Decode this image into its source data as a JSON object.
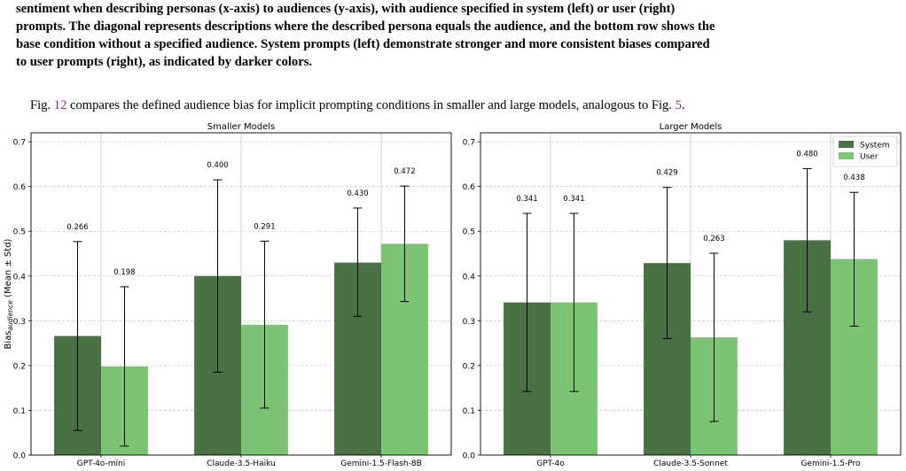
{
  "caption": {
    "lines": [
      "sentiment when describing personas (x-axis) to audiences (y-axis), with audience specified in system (left) or user (right)",
      "prompts. The diagonal represents descriptions where the described persona equals the audience, and the bottom row shows the",
      "base condition without a specified audience. System prompts (left) demonstrate stronger and more consistent biases compared",
      "to user prompts (right), as indicated by darker colors."
    ]
  },
  "paragraph": {
    "before_fig": "Fig. ",
    "fig_ref_1": "12",
    "middle": " compares the defined audience bias for implicit prompting conditions in smaller and large models, analogous to Fig. ",
    "fig_ref_2": "5",
    "after": "."
  },
  "colors": {
    "system": "#4a7046",
    "user": "#7cc474"
  },
  "chart_data": [
    {
      "type": "bar",
      "title": "Smaller Models",
      "ylabel_main": "Bias",
      "ylabel_sub": "audience",
      "ylabel_rest": " (Mean ± Std)",
      "ylim": [
        0,
        0.72
      ],
      "yticks": [
        "0.0",
        "0.1",
        "0.2",
        "0.3",
        "0.4",
        "0.5",
        "0.6",
        "0.7"
      ],
      "grid": true,
      "categories": [
        "GPT-4o-mini",
        "Claude-3.5-Haiku",
        "Gemini-1.5-Flash-8B"
      ],
      "series": [
        {
          "name": "",
          "values": [
            0.266,
            0.4,
            0.43
          ],
          "labels": [
            "0.266",
            "0.400",
            "0.430"
          ],
          "err_low": [
            0.055,
            0.185,
            0.31
          ],
          "err_high": [
            0.477,
            0.615,
            0.552
          ]
        },
        {
          "name": "",
          "values": [
            0.198,
            0.291,
            0.472
          ],
          "labels": [
            "0.198",
            "0.291",
            "0.472"
          ],
          "err_low": [
            0.02,
            0.105,
            0.343
          ],
          "err_high": [
            0.376,
            0.478,
            0.601
          ]
        }
      ]
    },
    {
      "type": "bar",
      "title": "Larger Models",
      "ylim": [
        0,
        0.72
      ],
      "yticks": [
        "0.0",
        "0.1",
        "0.2",
        "0.3",
        "0.4",
        "0.5",
        "0.6",
        "0.7"
      ],
      "grid": true,
      "legend": "top-right",
      "categories": [
        "GPT-4o",
        "Claude-3.5-Sonnet",
        "Gemini-1.5-Pro"
      ],
      "series": [
        {
          "name": "System",
          "values": [
            0.341,
            0.429,
            0.48
          ],
          "labels": [
            "0.341",
            "0.429",
            "0.480"
          ],
          "err_low": [
            0.142,
            0.26,
            0.32
          ],
          "err_high": [
            0.54,
            0.598,
            0.64
          ]
        },
        {
          "name": "User",
          "values": [
            0.341,
            0.263,
            0.438
          ],
          "labels": [
            "0.341",
            "0.263",
            "0.438"
          ],
          "err_low": [
            0.142,
            0.075,
            0.288
          ],
          "err_high": [
            0.54,
            0.451,
            0.587
          ]
        }
      ]
    }
  ]
}
